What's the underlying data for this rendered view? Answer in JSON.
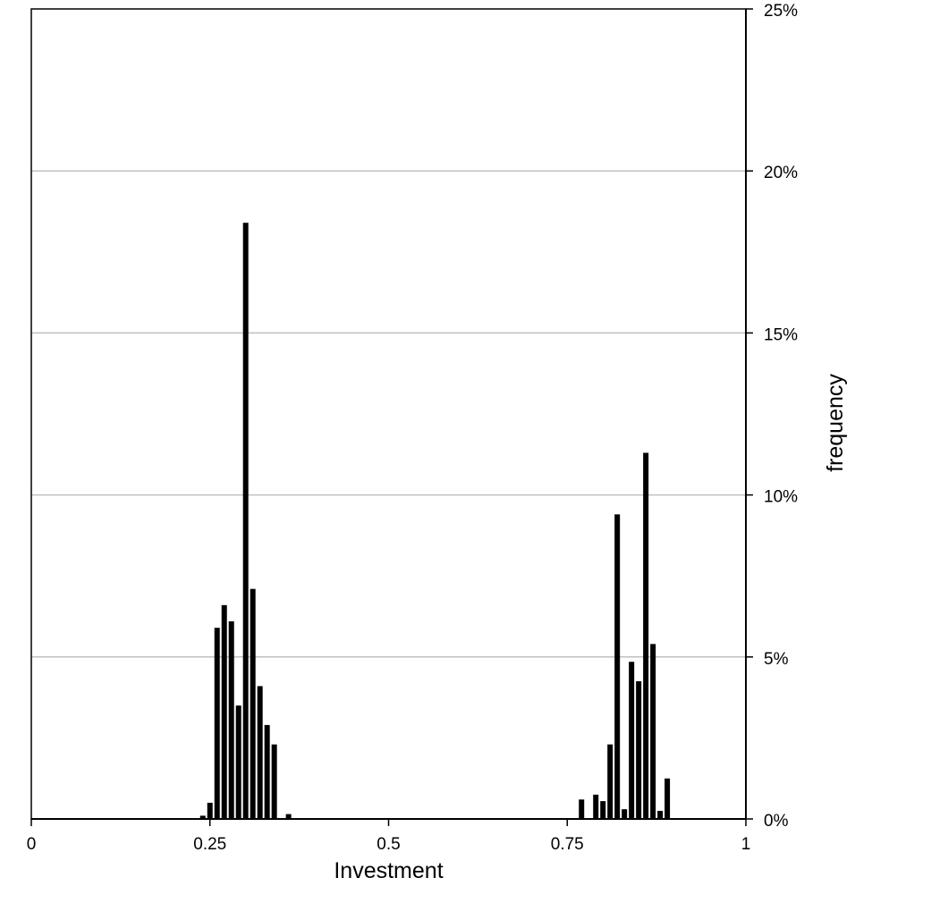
{
  "chart_data": {
    "type": "bar",
    "title": "",
    "xlabel": "Investment",
    "ylabel": "frequency",
    "xlim": [
      0,
      1
    ],
    "ylim": [
      0,
      25
    ],
    "x_ticks": [
      {
        "value": 0,
        "label": "0"
      },
      {
        "value": 0.25,
        "label": "0.25"
      },
      {
        "value": 0.5,
        "label": "0.5"
      },
      {
        "value": 0.75,
        "label": "0.75"
      },
      {
        "value": 1,
        "label": "1"
      }
    ],
    "y_ticks": [
      {
        "value": 0,
        "label": "0%"
      },
      {
        "value": 5,
        "label": "5%"
      },
      {
        "value": 10,
        "label": "10%"
      },
      {
        "value": 15,
        "label": "15%"
      },
      {
        "value": 20,
        "label": "20%"
      },
      {
        "value": 25,
        "label": "25%"
      }
    ],
    "y_axis_side": "right",
    "grid": "horizontal",
    "bin_width": 0.01,
    "bar_color": "#000000",
    "bars": [
      {
        "x": 0.24,
        "y": 0.1
      },
      {
        "x": 0.25,
        "y": 0.5
      },
      {
        "x": 0.26,
        "y": 5.9
      },
      {
        "x": 0.27,
        "y": 6.6
      },
      {
        "x": 0.28,
        "y": 6.1
      },
      {
        "x": 0.29,
        "y": 3.5
      },
      {
        "x": 0.3,
        "y": 18.4
      },
      {
        "x": 0.31,
        "y": 7.1
      },
      {
        "x": 0.32,
        "y": 4.1
      },
      {
        "x": 0.33,
        "y": 2.9
      },
      {
        "x": 0.34,
        "y": 2.3
      },
      {
        "x": 0.36,
        "y": 0.15
      },
      {
        "x": 0.77,
        "y": 0.6
      },
      {
        "x": 0.79,
        "y": 0.75
      },
      {
        "x": 0.8,
        "y": 0.55
      },
      {
        "x": 0.81,
        "y": 2.3
      },
      {
        "x": 0.82,
        "y": 9.4
      },
      {
        "x": 0.83,
        "y": 0.3
      },
      {
        "x": 0.84,
        "y": 4.85
      },
      {
        "x": 0.85,
        "y": 4.25
      },
      {
        "x": 0.86,
        "y": 11.3
      },
      {
        "x": 0.87,
        "y": 5.4
      },
      {
        "x": 0.88,
        "y": 0.25
      },
      {
        "x": 0.89,
        "y": 1.25
      }
    ]
  }
}
